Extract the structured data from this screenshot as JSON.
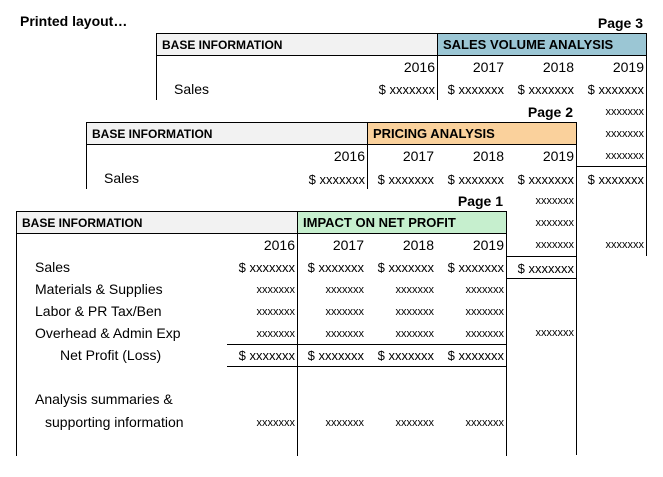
{
  "title": "Printed layout…",
  "years": [
    "2016",
    "2017",
    "2018",
    "2019"
  ],
  "placeholder": "xxxxxxx",
  "dollar_placeholder": "$ xxxxxxx",
  "page3": {
    "label": "Page 3",
    "base_header": "BASE INFORMATION",
    "section_header": "SALES VOLUME ANALYSIS",
    "section_color": "#9bc6d4",
    "row_label": "Sales"
  },
  "page2": {
    "label": "Page 2",
    "base_header": "BASE INFORMATION",
    "section_header": "PRICING ANALYSIS",
    "section_color": "#fad19c",
    "row_label": "Sales"
  },
  "page1": {
    "label": "Page 1",
    "base_header": "BASE INFORMATION",
    "section_header": "IMPACT ON NET PROFIT",
    "section_color": "#c6efce",
    "rows": [
      "Sales",
      "Materials & Supplies",
      "Labor & PR Tax/Ben",
      "Overhead & Admin Exp",
      "Net Profit (Loss)"
    ],
    "summary_line1": "Analysis summaries &",
    "summary_line2": "supporting information"
  }
}
